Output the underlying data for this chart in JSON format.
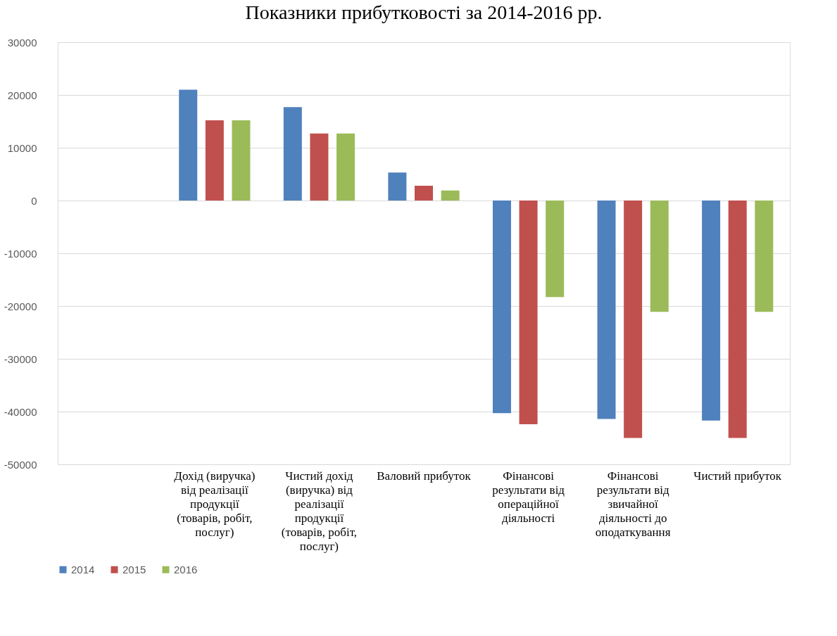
{
  "chart_data": {
    "type": "bar",
    "title": "Показники прибутковості за 2014-2016  рр.",
    "categories": [
      null,
      "Дохід (виручка) від реалізації продукції (товарів, робіт, послуг)",
      "Чистий дохід (виручка) від реалізації продукції (товарів, робіт, послуг)",
      "Валовий прибуток",
      "Фінансові результати від операційної діяльності",
      "Фінансові результати від звичайної діяльності до оподаткування",
      "Чистий прибуток"
    ],
    "series": [
      {
        "name": "2014",
        "color": "#4f81bd",
        "values": [
          null,
          21000,
          17700,
          5300,
          -40300,
          -41400,
          -41700
        ]
      },
      {
        "name": "2015",
        "color": "#c0504d",
        "values": [
          null,
          15200,
          12700,
          2800,
          -42400,
          -45000,
          -45000
        ]
      },
      {
        "name": "2016",
        "color": "#9bbb59",
        "values": [
          null,
          15200,
          12700,
          1900,
          -18300,
          -21100,
          -21100
        ]
      }
    ],
    "ylim": [
      -50000,
      30000
    ],
    "yticks": [
      -50000,
      -40000,
      -30000,
      -20000,
      -10000,
      0,
      10000,
      20000,
      30000
    ],
    "grid": "y",
    "legend": "bottom"
  }
}
